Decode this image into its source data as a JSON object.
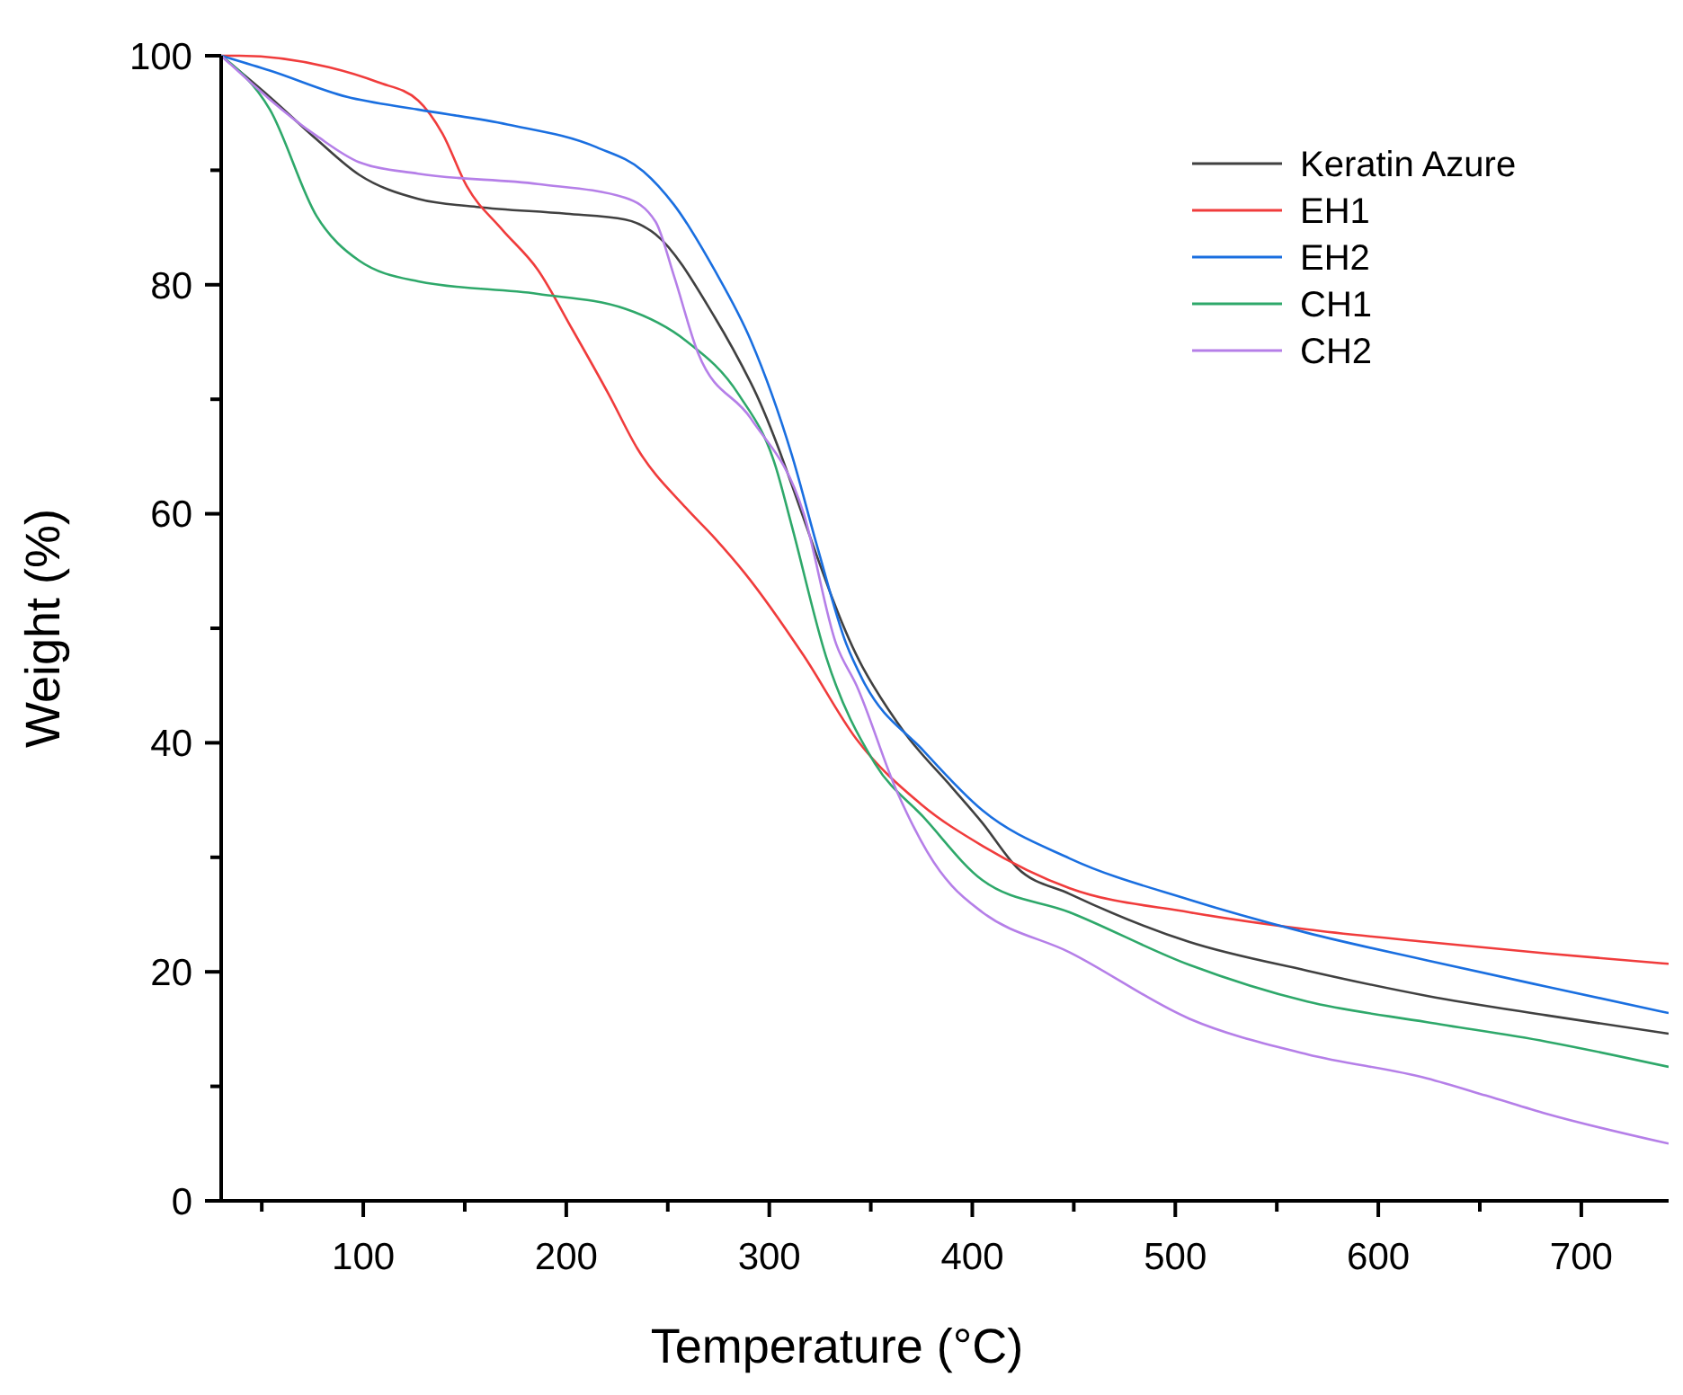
{
  "chart_data": {
    "type": "line",
    "xlabel": "Temperature (°C)",
    "ylabel": "Weight (%)",
    "xlim": [
      30,
      743
    ],
    "ylim": [
      0,
      100
    ],
    "xticks": [
      {
        "value": 50,
        "label": null
      },
      100,
      {
        "value": 150,
        "label": null
      },
      200,
      {
        "value": 250,
        "label": null
      },
      300,
      {
        "value": 350,
        "label": null
      },
      400,
      {
        "value": 450,
        "label": null
      },
      500,
      {
        "value": 550,
        "label": null
      },
      600,
      {
        "value": 650,
        "label": null
      },
      700
    ],
    "yticks": [
      0,
      {
        "value": 10,
        "label": null
      },
      20,
      {
        "value": 30,
        "label": null
      },
      40,
      {
        "value": 50,
        "label": null
      },
      60,
      {
        "value": 70,
        "label": null
      },
      80,
      {
        "value": 90,
        "label": null
      },
      100
    ],
    "grid": false,
    "legend": "top right",
    "marker": "none",
    "line_style": "solid",
    "series": [
      {
        "name": "Keratin Azure",
        "color": "#404040",
        "x": [
          30,
          54,
          77,
          98,
          127,
          156,
          200,
          229,
          244,
          273,
          291,
          346,
          367,
          390,
          405,
          422,
          448,
          507,
          565,
          624,
          683,
          743
        ],
        "values": [
          100,
          96.4,
          92.7,
          89.6,
          87.5,
          86.8,
          86.2,
          85.7,
          84.4,
          77.2,
          71.4,
          46.6,
          40.8,
          36.1,
          33,
          29.1,
          26.8,
          22.6,
          20.1,
          17.9,
          16.2,
          14.6
        ]
      },
      {
        "name": "EH1",
        "color": "#f03c3c",
        "x": [
          30,
          39,
          83,
          107,
          127,
          139,
          151,
          168,
          186,
          203,
          221,
          235,
          259,
          273,
          288,
          317,
          343,
          375,
          405,
          448,
          507,
          565,
          624,
          683,
          743
        ],
        "values": [
          100,
          100,
          99,
          97.7,
          96.1,
          93.2,
          88.6,
          84.9,
          81.3,
          76.1,
          70.4,
          65.7,
          60.5,
          57.9,
          54.8,
          47.6,
          40.3,
          34.6,
          31,
          27.3,
          25.2,
          23.7,
          22.6,
          21.6,
          20.7
        ]
      },
      {
        "name": "EH2",
        "color": "#1a6fe0",
        "x": [
          30,
          54,
          92,
          127,
          171,
          215,
          238,
          253,
          273,
          291,
          311,
          324,
          338,
          346,
          376,
          405,
          448,
          507,
          565,
          624,
          683,
          743
        ],
        "values": [
          100,
          98.7,
          96.4,
          95.3,
          94,
          92,
          89.9,
          87,
          81.3,
          75.1,
          65.2,
          56.9,
          48.6,
          45.5,
          39.3,
          34.1,
          29.9,
          26.3,
          23.4,
          21,
          18.7,
          16.4
        ]
      },
      {
        "name": "CH1",
        "color": "#2ea86a",
        "x": [
          30,
          54,
          77,
          98,
          127,
          186,
          229,
          259,
          285,
          303,
          311,
          328,
          352,
          376,
          405,
          448,
          507,
          565,
          624,
          683,
          743
        ],
        "values": [
          100,
          95.3,
          86,
          82.1,
          80.3,
          79.2,
          77.9,
          75.1,
          70.4,
          64.2,
          59,
          47.5,
          38.2,
          33.5,
          28,
          25.2,
          20.6,
          17.4,
          15.6,
          13.9,
          11.7
        ]
      },
      {
        "name": "CH2",
        "color": "#b57fe8",
        "x": [
          30,
          77,
          98,
          127,
          186,
          229,
          244,
          253,
          265,
          291,
          317,
          333,
          343,
          363,
          384,
          390,
          405,
          448,
          507,
          565,
          624,
          653,
          683,
          743
        ],
        "values": [
          100,
          93,
          90.7,
          89.7,
          88.8,
          87.6,
          85.5,
          80.8,
          74,
          68.3,
          60,
          48.6,
          45,
          35.7,
          28.8,
          27.5,
          25.2,
          21.7,
          15.9,
          12.8,
          10.7,
          9.2,
          7.6,
          5
        ]
      }
    ]
  }
}
